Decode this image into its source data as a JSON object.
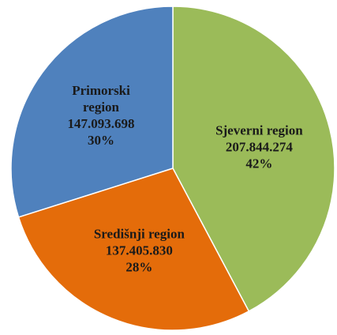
{
  "chart_data": {
    "type": "pie",
    "categories": [
      "Sjeverni region",
      "Središnji region",
      "Primorski region"
    ],
    "values": [
      207844274,
      137405830,
      147093698
    ],
    "value_labels": [
      "207.844.274",
      "137.405.830",
      "147.093.698"
    ],
    "percentages": [
      42,
      28,
      30
    ],
    "percentage_labels": [
      "42%",
      "28%",
      "30%"
    ],
    "colors": [
      "#9bbb59",
      "#e46c0a",
      "#4f81bd"
    ]
  }
}
